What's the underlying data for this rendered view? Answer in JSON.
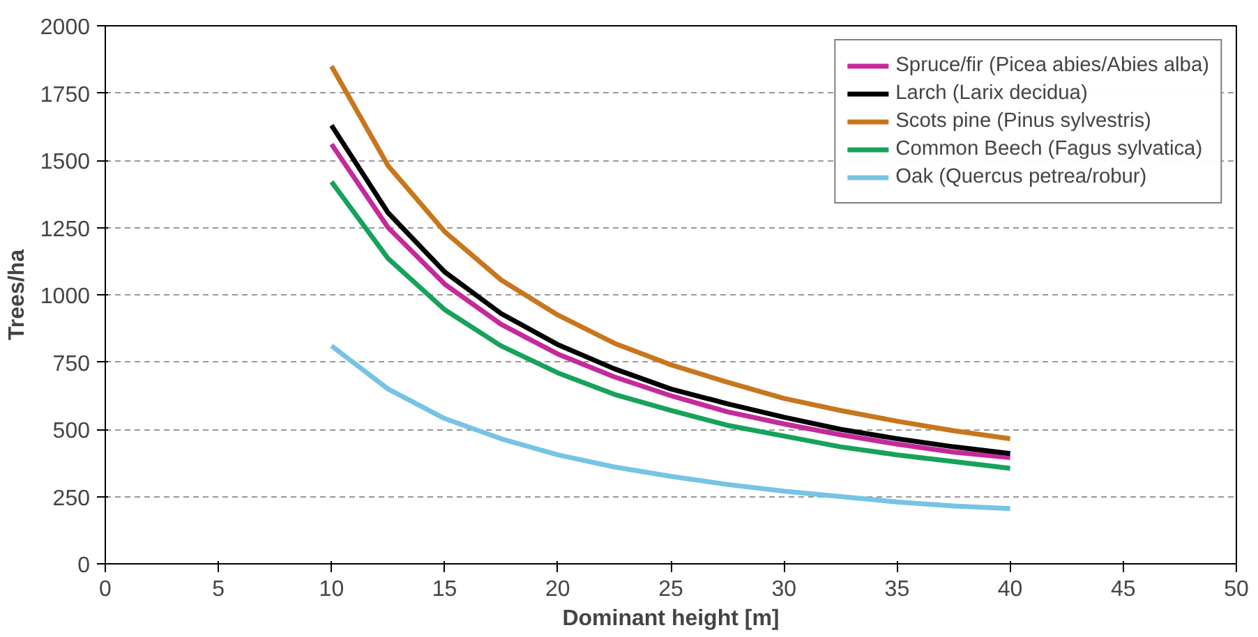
{
  "chart_data": {
    "type": "line",
    "xlabel": "Dominant height [m]",
    "ylabel": "Trees/ha",
    "x": [
      10,
      12.5,
      15,
      17.5,
      20,
      22.5,
      25,
      27.5,
      30,
      32.5,
      35,
      37.5,
      40
    ],
    "series": [
      {
        "name": "Spruce/fir (Picea abies/Abies alba)",
        "color": "#c42a9c",
        "values": [
          1560,
          1250,
          1040,
          890,
          780,
          695,
          625,
          565,
          520,
          480,
          445,
          415,
          395
        ]
      },
      {
        "name": "Larch (Larix decidua)",
        "color": "#000000",
        "values": [
          1630,
          1305,
          1085,
          930,
          815,
          725,
          650,
          595,
          545,
          500,
          465,
          435,
          410
        ]
      },
      {
        "name": "Scots pine (Pinus sylvestris)",
        "color": "#c8761d",
        "values": [
          1850,
          1480,
          1235,
          1055,
          925,
          820,
          740,
          675,
          615,
          570,
          530,
          495,
          465
        ]
      },
      {
        "name": "Common Beech (Fagus sylvatica)",
        "color": "#16a25a",
        "values": [
          1420,
          1135,
          945,
          810,
          710,
          630,
          570,
          515,
          475,
          435,
          405,
          380,
          355
        ]
      },
      {
        "name": "Oak (Quercus petrea/robur)",
        "color": "#76c4e4",
        "values": [
          810,
          650,
          540,
          465,
          405,
          360,
          325,
          295,
          270,
          250,
          230,
          215,
          205
        ]
      }
    ],
    "xlim": [
      0,
      50
    ],
    "xticks": [
      0,
      5,
      10,
      15,
      20,
      25,
      30,
      35,
      40,
      45,
      50
    ],
    "ylim": [
      0,
      2000
    ],
    "yticks": [
      0,
      250,
      500,
      750,
      1000,
      1250,
      1500,
      1750,
      2000
    ],
    "grid": "y",
    "legend": "top right",
    "line_style": "solid",
    "marker": "none"
  }
}
